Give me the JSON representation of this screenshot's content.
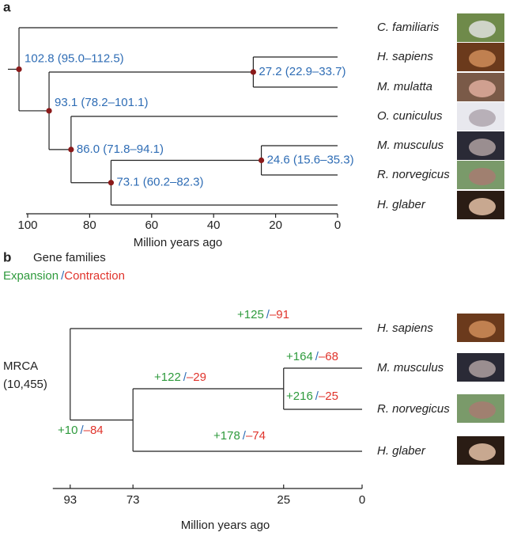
{
  "panel_a": {
    "label": "a",
    "taxa": [
      "C. familiaris",
      "H. sapiens",
      "M. mulatta",
      "O. cuniculus",
      "M. musculus",
      "R. norvegicus",
      "H. glaber"
    ],
    "nodes": [
      {
        "age": 102.8,
        "label": "102.8 (95.0–112.5)"
      },
      {
        "age": 27.2,
        "label": "27.2 (22.9–33.7)"
      },
      {
        "age": 93.1,
        "label": "93.1 (78.2–101.1)"
      },
      {
        "age": 86.0,
        "label": "86.0 (71.8–94.1)"
      },
      {
        "age": 73.1,
        "label": "73.1 (60.2–82.3)"
      },
      {
        "age": 24.6,
        "label": "24.6 (15.6–35.3)"
      }
    ],
    "axis": {
      "ticks": [
        100,
        80,
        60,
        40,
        20,
        0
      ],
      "title": "Million years ago"
    }
  },
  "panel_b": {
    "label": "b",
    "title": "Gene families",
    "legend": {
      "expansion": "Expansion",
      "separator": "/",
      "contraction": "Contraction"
    },
    "root": {
      "label": "MRCA",
      "count": "(10,455)"
    },
    "taxa": [
      "H. sapiens",
      "M. musculus",
      "R. norvegicus",
      "H. glaber"
    ],
    "nodes": [
      {
        "age": 93
      },
      {
        "age": 73
      },
      {
        "age": 25
      }
    ],
    "branches": [
      {
        "gain": "+125",
        "loss": "–91"
      },
      {
        "gain": "+164",
        "loss": "–68"
      },
      {
        "gain": "+216",
        "loss": "–25"
      },
      {
        "gain": "+122",
        "loss": "–29"
      },
      {
        "gain": "+10",
        "loss": "–84"
      },
      {
        "gain": "+178",
        "loss": "–74"
      }
    ],
    "axis": {
      "ticks": [
        93,
        73,
        25,
        0
      ],
      "title": "Million years ago"
    }
  }
}
